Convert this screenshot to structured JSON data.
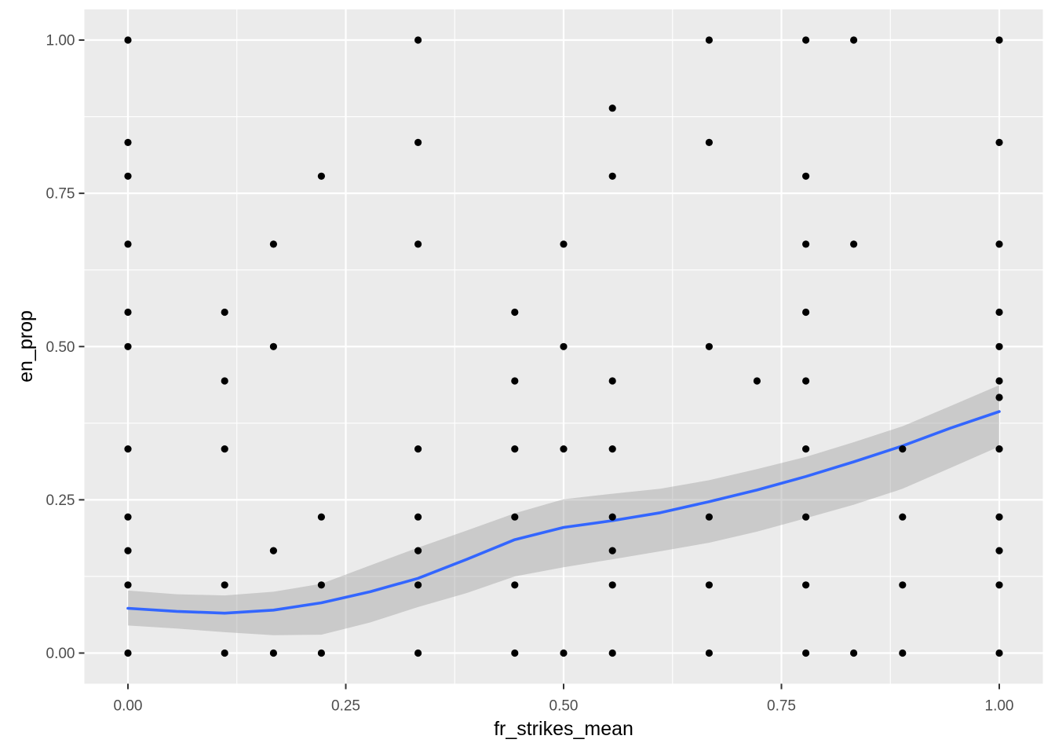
{
  "chart_data": {
    "type": "scatter",
    "title": "",
    "xlabel": "fr_strikes_mean",
    "ylabel": "en_prop",
    "xlim": [
      0,
      1
    ],
    "ylim": [
      0,
      1
    ],
    "grid": "major and minor white gridlines on gray panel",
    "legend_position": "none",
    "x_ticks": {
      "values": [
        0,
        0.25,
        0.5,
        0.75,
        1
      ],
      "labels": [
        "0.00",
        "0.25",
        "0.50",
        "0.75",
        "1.00"
      ]
    },
    "y_ticks": {
      "values": [
        0,
        0.25,
        0.5,
        0.75,
        1
      ],
      "labels": [
        "0.00",
        "0.25",
        "0.50",
        "0.75",
        "1.00"
      ]
    },
    "x_minor_ticks": [
      0.125,
      0.375,
      0.625,
      0.875
    ],
    "y_minor_ticks": [
      0.125,
      0.375,
      0.625,
      0.875
    ],
    "points": [
      [
        0.0,
        1.0
      ],
      [
        0.333,
        1.0
      ],
      [
        0.667,
        1.0
      ],
      [
        0.778,
        1.0
      ],
      [
        0.833,
        1.0
      ],
      [
        1.0,
        1.0
      ],
      [
        0.556,
        0.889
      ],
      [
        0.0,
        0.833
      ],
      [
        0.333,
        0.833
      ],
      [
        0.667,
        0.833
      ],
      [
        1.0,
        0.833
      ],
      [
        0.0,
        0.778
      ],
      [
        0.222,
        0.778
      ],
      [
        0.556,
        0.778
      ],
      [
        0.778,
        0.778
      ],
      [
        0.0,
        0.667
      ],
      [
        0.167,
        0.667
      ],
      [
        0.333,
        0.667
      ],
      [
        0.5,
        0.667
      ],
      [
        0.778,
        0.667
      ],
      [
        0.833,
        0.667
      ],
      [
        1.0,
        0.667
      ],
      [
        0.0,
        0.556
      ],
      [
        0.111,
        0.556
      ],
      [
        0.444,
        0.556
      ],
      [
        0.778,
        0.556
      ],
      [
        1.0,
        0.556
      ],
      [
        0.0,
        0.5
      ],
      [
        0.167,
        0.5
      ],
      [
        0.5,
        0.5
      ],
      [
        0.667,
        0.5
      ],
      [
        1.0,
        0.5
      ],
      [
        0.111,
        0.444
      ],
      [
        0.444,
        0.444
      ],
      [
        0.556,
        0.444
      ],
      [
        0.722,
        0.444
      ],
      [
        0.778,
        0.444
      ],
      [
        1.0,
        0.444
      ],
      [
        1.0,
        0.417
      ],
      [
        0.0,
        0.333
      ],
      [
        0.111,
        0.333
      ],
      [
        0.333,
        0.333
      ],
      [
        0.444,
        0.333
      ],
      [
        0.5,
        0.333
      ],
      [
        0.556,
        0.333
      ],
      [
        0.778,
        0.333
      ],
      [
        0.889,
        0.333
      ],
      [
        1.0,
        0.333
      ],
      [
        0.0,
        0.222
      ],
      [
        0.222,
        0.222
      ],
      [
        0.333,
        0.222
      ],
      [
        0.444,
        0.222
      ],
      [
        0.556,
        0.222
      ],
      [
        0.667,
        0.222
      ],
      [
        0.778,
        0.222
      ],
      [
        0.889,
        0.222
      ],
      [
        1.0,
        0.222
      ],
      [
        0.0,
        0.167
      ],
      [
        0.167,
        0.167
      ],
      [
        0.333,
        0.167
      ],
      [
        0.556,
        0.167
      ],
      [
        1.0,
        0.167
      ],
      [
        0.0,
        0.111
      ],
      [
        0.111,
        0.111
      ],
      [
        0.222,
        0.111
      ],
      [
        0.333,
        0.111
      ],
      [
        0.444,
        0.111
      ],
      [
        0.556,
        0.111
      ],
      [
        0.667,
        0.111
      ],
      [
        0.778,
        0.111
      ],
      [
        0.889,
        0.111
      ],
      [
        1.0,
        0.111
      ],
      [
        0.0,
        0.0
      ],
      [
        0.111,
        0.0
      ],
      [
        0.167,
        0.0
      ],
      [
        0.222,
        0.0
      ],
      [
        0.333,
        0.0
      ],
      [
        0.444,
        0.0
      ],
      [
        0.5,
        0.0
      ],
      [
        0.556,
        0.0
      ],
      [
        0.667,
        0.0
      ],
      [
        0.778,
        0.0
      ],
      [
        0.833,
        0.0
      ],
      [
        0.889,
        0.0
      ],
      [
        1.0,
        0.0
      ]
    ],
    "smooth_line": {
      "name": "loess smooth",
      "x": [
        0.0,
        0.056,
        0.111,
        0.167,
        0.222,
        0.278,
        0.333,
        0.389,
        0.444,
        0.5,
        0.556,
        0.611,
        0.667,
        0.722,
        0.778,
        0.833,
        0.889,
        0.944,
        1.0
      ],
      "y": [
        0.073,
        0.068,
        0.065,
        0.07,
        0.082,
        0.1,
        0.122,
        0.153,
        0.185,
        0.205,
        0.216,
        0.229,
        0.247,
        0.266,
        0.288,
        0.312,
        0.338,
        0.367,
        0.394
      ]
    },
    "ribbon": {
      "name": "confidence band",
      "x": [
        0.0,
        0.056,
        0.111,
        0.167,
        0.222,
        0.278,
        0.333,
        0.389,
        0.444,
        0.5,
        0.556,
        0.611,
        0.667,
        0.722,
        0.778,
        0.833,
        0.889,
        0.944,
        1.0
      ],
      "upper": [
        0.102,
        0.096,
        0.094,
        0.1,
        0.113,
        0.143,
        0.172,
        0.2,
        0.228,
        0.251,
        0.26,
        0.268,
        0.282,
        0.3,
        0.32,
        0.344,
        0.37,
        0.403,
        0.437
      ],
      "lower": [
        0.045,
        0.04,
        0.034,
        0.029,
        0.03,
        0.05,
        0.075,
        0.098,
        0.125,
        0.14,
        0.153,
        0.166,
        0.18,
        0.198,
        0.22,
        0.242,
        0.268,
        0.302,
        0.337
      ]
    },
    "colors": {
      "panel": "#EBEBEB",
      "grid": "#FFFFFF",
      "point": "#000000",
      "line": "#3366FF",
      "ribbon": "#999999",
      "ribbon_opacity": 0.4,
      "tick_label": "#4D4D4D",
      "tick_mark": "#333333",
      "axis_title": "#000000"
    }
  }
}
